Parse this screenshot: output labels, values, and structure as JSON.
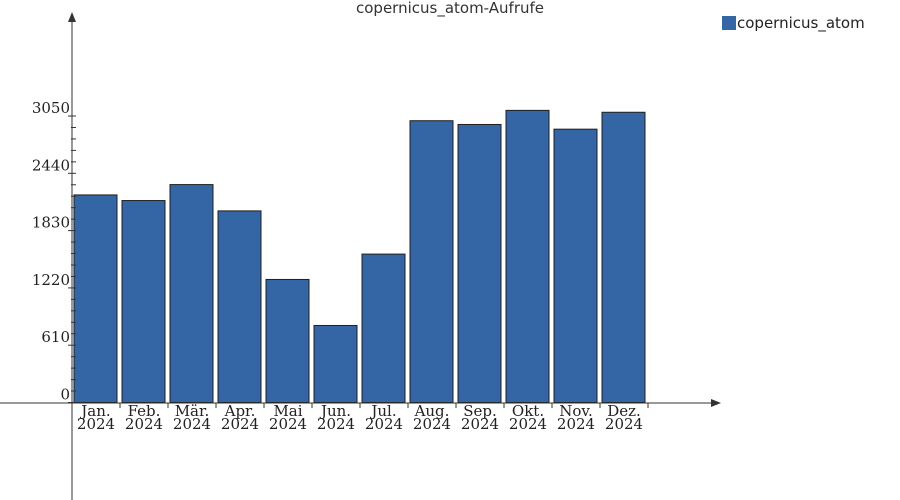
{
  "chart_data": {
    "type": "bar",
    "title": "copernicus_atom-Aufrufe",
    "categories": [
      [
        "Jan.",
        "2024"
      ],
      [
        "Feb.",
        "2024"
      ],
      [
        "Mär.",
        "2024"
      ],
      [
        "Apr.",
        "2024"
      ],
      [
        "Mai",
        "2024"
      ],
      [
        "Jun.",
        "2024"
      ],
      [
        "Jul.",
        "2024"
      ],
      [
        "Aug.",
        "2024"
      ],
      [
        "Sep.",
        "2024"
      ],
      [
        "Okt.",
        "2024"
      ],
      [
        "Nov.",
        "2024"
      ],
      [
        "Dez.",
        "2024"
      ]
    ],
    "series": [
      {
        "name": "copernicus_atom",
        "color": "#3465a4",
        "values": [
          2210,
          2150,
          2320,
          2040,
          1310,
          820,
          1580,
          3000,
          2960,
          3110,
          2910,
          3090
        ]
      }
    ],
    "yticks": [
      0,
      610,
      1220,
      1830,
      2440,
      3050
    ],
    "ylim": [
      0,
      4200
    ],
    "grid": false,
    "legend_position": "top-right"
  }
}
